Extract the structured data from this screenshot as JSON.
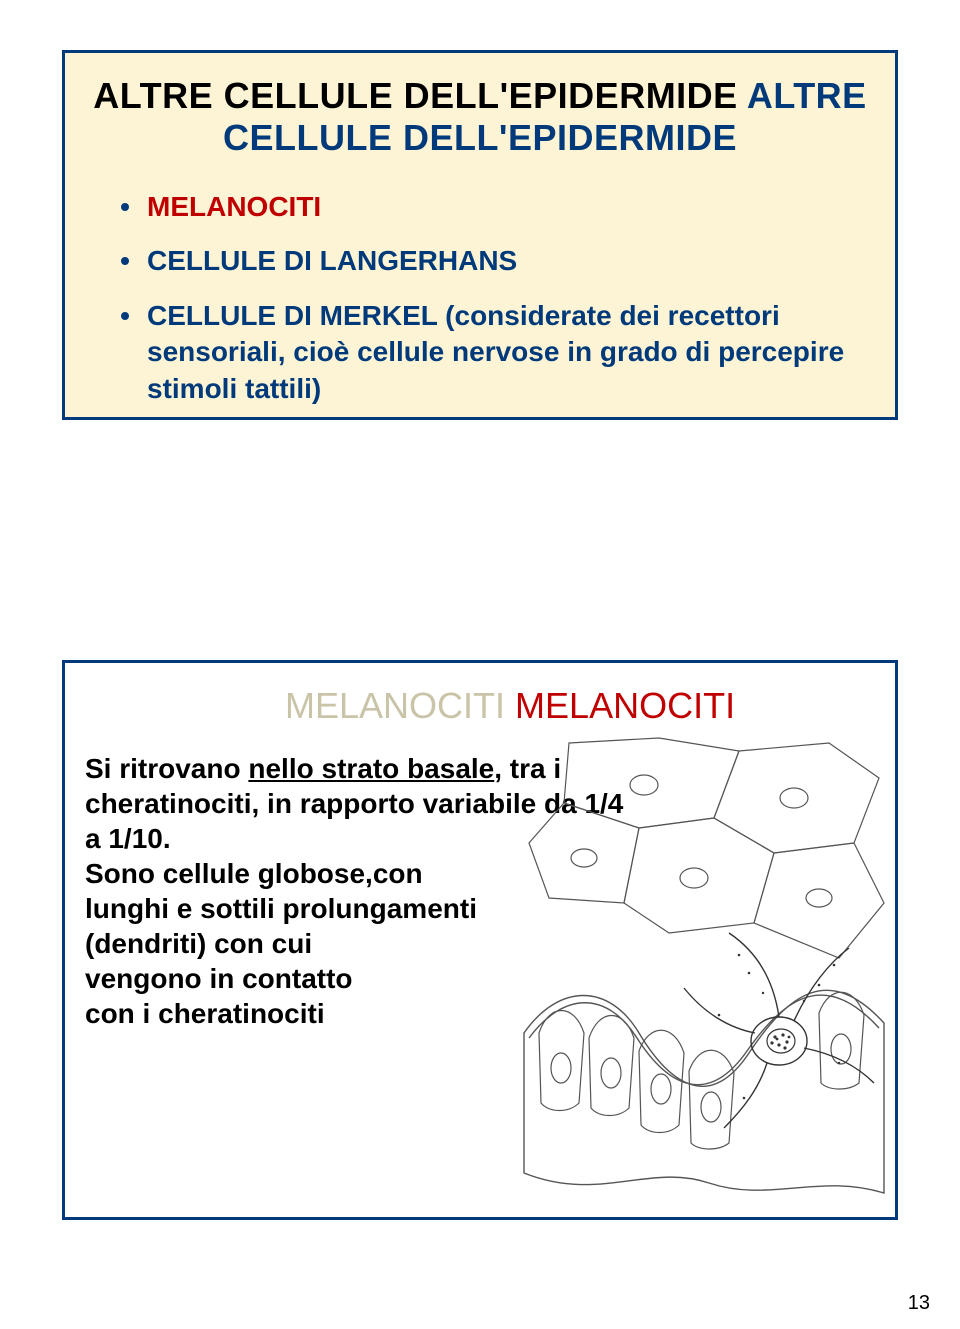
{
  "colors": {
    "slide1_bg": "#fdf3d5",
    "slide1_border": "#003a7a",
    "slide2_bg": "#ffffff",
    "slide2_border": "#003a7a",
    "title_color": "#003a7a",
    "title_shadow": "#c9c3a8",
    "bullet1_dot": "#003a7a",
    "bullet1_text": "#c00000",
    "bullet2_dot": "#003a7a",
    "bullet2_text": "#003a7a",
    "bullet3_dot": "#003a7a",
    "bullet3_text": "#003a7a",
    "merkel_sub_text": "#003a7a",
    "slide2_title_color": "#c00000",
    "slide2_text_color": "#000000",
    "diagram_stroke": "#555555",
    "diagram_dark": "#333333"
  },
  "fonts": {
    "title_size_pt": 27,
    "body_size_pt": 21,
    "page_num_size_pt": 15
  },
  "slide1": {
    "title": "ALTRE CELLULE DELL'EPIDERMIDE",
    "bullets": [
      {
        "text": "MELANOCITI"
      },
      {
        "text": "CELLULE DI LANGERHANS"
      },
      {
        "text": "CELLULE DI MERKEL",
        "sub": " (considerate dei recettori sensoriali, cioè cellule nervose in grado di percepire stimoli tattili)"
      }
    ]
  },
  "slide2": {
    "title": "MELANOCITI",
    "body_pre": "Si ritrovano ",
    "body_underline": "nello strato basale",
    "body_post": ", tra i  cheratinociti, in rapporto  variabile da  1/4  a  1/10.\nSono cellule globose,con\nlunghi e sottili prolungamenti\n(dendriti) con cui\nvengono in contatto\ncon i cheratinociti",
    "diagram": {
      "type": "biological-illustration",
      "description": "cross-section of basal epidermis with melanocyte",
      "stroke_width": 1.2
    }
  },
  "page_number": "13"
}
